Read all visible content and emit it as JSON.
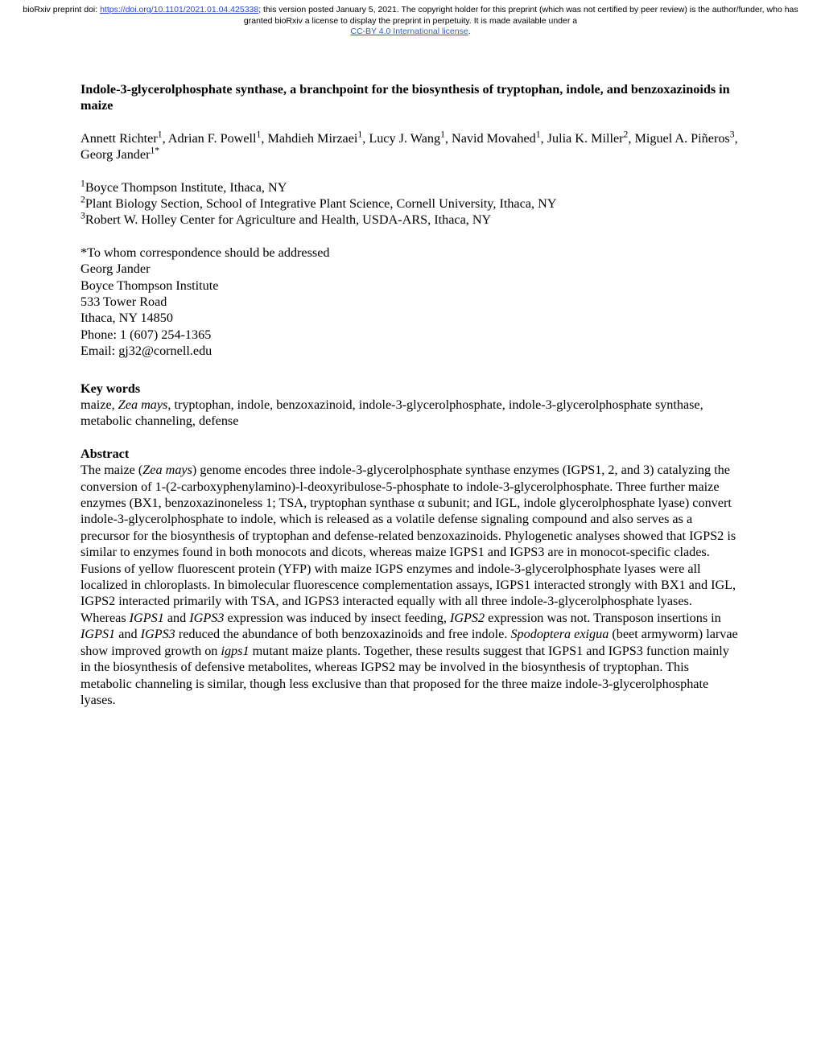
{
  "banner": {
    "prefix": "bioRxiv preprint doi: ",
    "doi_url": "https://doi.org/10.1101/2021.01.04.425338",
    "after_doi": "; this version posted January 5, 2021. The copyright holder for this preprint (which was not certified by peer review) is the author/funder, who has granted bioRxiv a license to display the preprint in perpetuity. It is made available under a",
    "license_text": "CC-BY 4.0 International license",
    "period": "."
  },
  "title": "Indole-3-glycerolphosphate synthase, a branchpoint for the biosynthesis of tryptophan, indole, and benzoxazinoids in maize",
  "authors": {
    "a1": "Annett Richter",
    "a2": "Adrian F. Powell",
    "a3": "Mahdieh Mirzaei",
    "a4": "Lucy J. Wang",
    "a5": "Navid Movahed",
    "a6": "Julia K. Miller",
    "a7": "Miguel A. Piñeros",
    "a8": "Georg Jander"
  },
  "affiliations": {
    "a1": "Boyce Thompson Institute, Ithaca, NY",
    "a2": "Plant Biology Section, School of Integrative Plant Science, Cornell University, Ithaca, NY",
    "a3": "Robert W. Holley Center for Agriculture and Health, USDA-ARS, Ithaca, NY"
  },
  "correspondence": {
    "line1": "*To whom correspondence should be addressed",
    "line2": "Georg Jander",
    "line3": "Boyce Thompson Institute",
    "line4": "533 Tower Road",
    "line5": "Ithaca, NY 14850",
    "line6": "Phone: 1 (607) 254-1365",
    "line7": "Email: gj32@cornell.edu"
  },
  "keywords": {
    "heading": "Key words",
    "pre": "maize, ",
    "ital": "Zea mays",
    "post": ", tryptophan, indole, benzoxazinoid, indole-3-glycerolphosphate, indole-3-glycerolphosphate synthase, metabolic channeling, defense"
  },
  "abstract": {
    "heading": "Abstract",
    "p1a": "The maize (",
    "p1b": "Zea mays",
    "p1c": ") genome encodes three indole-3-glycerolphosphate synthase enzymes (IGPS1, 2, and 3) catalyzing the conversion of 1-(2-carboxyphenylamino)-l-deoxyribulose-5-phosphate to indole-3-glycerolphosphate. Three further maize enzymes (BX1, benzoxazinoneless 1; TSA, tryptophan synthase α subunit; and IGL, indole glycerolphosphate lyase) convert indole-3-glycerolphosphate to indole, which is released as a volatile defense signaling compound and also serves as a precursor for the biosynthesis of tryptophan and defense-related benzoxazinoids. Phylogenetic analyses showed that IGPS2 is similar to enzymes found in both monocots and dicots, whereas maize IGPS1 and IGPS3 are in monocot-specific clades. Fusions of yellow fluorescent protein (YFP) with maize IGPS enzymes and indole-3-glycerolphosphate lyases were all localized in chloroplasts. In bimolecular fluorescence complementation assays, IGPS1 interacted strongly with BX1 and IGL, IGPS2 interacted primarily with TSA, and IGPS3 interacted equally with all three indole-3-glycerolphosphate lyases. Whereas ",
    "p1d": "IGPS1",
    "p1e": " and ",
    "p1f": "IGPS3",
    "p1g": " expression was induced by insect feeding, ",
    "p1h": "IGPS2",
    "p1i": " expression was not. Transposon insertions in ",
    "p1j": "IGPS1",
    "p1k": " and ",
    "p1l": "IGPS3",
    "p1m": " reduced the abundance of both benzoxazinoids and free indole. ",
    "p1n": "Spodoptera exigua",
    "p1o": " (beet armyworm) larvae show improved growth on ",
    "p1p": "igps1",
    "p1q": " mutant maize plants. Together, these results suggest that IGPS1 and IGPS3 function mainly in the biosynthesis of defensive metabolites, whereas IGPS2 may be involved in the biosynthesis of tryptophan. This metabolic channeling is similar, though less exclusive than that proposed for the three maize indole-3-glycerolphosphate lyases."
  }
}
